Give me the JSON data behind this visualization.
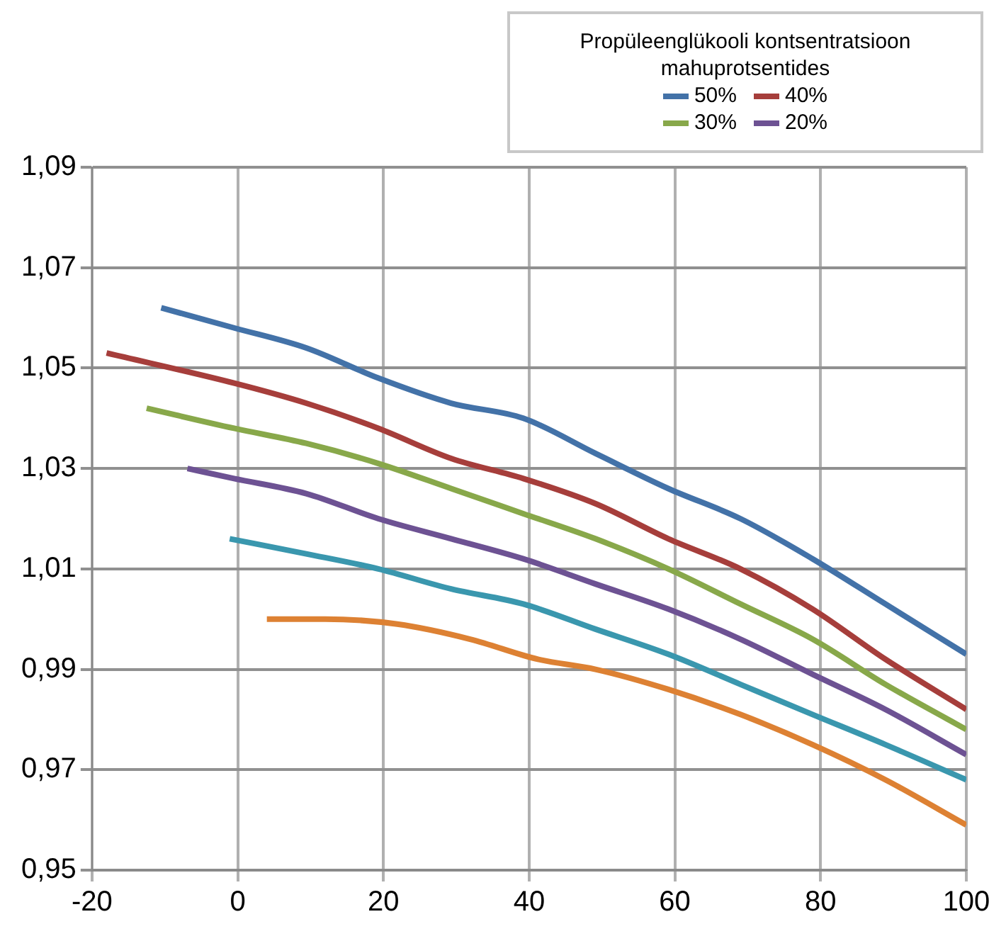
{
  "chart_data": {
    "type": "line",
    "legend_title": "Propüleenglükooli kontsentratsioon mahuprotsentides",
    "xlim": [
      -20,
      100
    ],
    "xticks": [
      -20,
      0,
      20,
      40,
      60,
      80,
      100
    ],
    "ylim": [
      0.95,
      1.09
    ],
    "yticks": [
      {
        "value": 0.95,
        "label": "0,95"
      },
      {
        "value": 0.97,
        "label": "0,97"
      },
      {
        "value": 0.99,
        "label": "0,99"
      },
      {
        "value": 1.01,
        "label": "1,01"
      },
      {
        "value": 1.03,
        "label": "1,03"
      },
      {
        "value": 1.05,
        "label": "1,05"
      },
      {
        "value": 1.07,
        "label": "1,07"
      },
      {
        "value": 1.09,
        "label": "1,09"
      }
    ],
    "grid": true,
    "legend": "top right",
    "marker": "none",
    "line_style": "solid",
    "series": [
      {
        "name": "50%",
        "color": "#4372a8",
        "x": [
          -10.5,
          -0.5,
          9.4,
          19.3,
          29.3,
          39.2,
          49.1,
          59.1,
          69.0,
          78.9,
          88.9,
          100
        ],
        "values": [
          1.062,
          1.058,
          1.054,
          1.048,
          1.043,
          1.04,
          1.033,
          1.026,
          1.02,
          1.012,
          1.003,
          0.993
        ]
      },
      {
        "name": "40%",
        "color": "#a63e3b",
        "x": [
          -18,
          -0.5,
          9.4,
          19.3,
          29.3,
          39.2,
          49.1,
          59.1,
          69.0,
          78.9,
          88.9,
          100
        ],
        "values": [
          1.053,
          1.047,
          1.043,
          1.038,
          1.032,
          1.028,
          1.023,
          1.016,
          1.01,
          1.002,
          0.992,
          0.982
        ]
      },
      {
        "name": "30%",
        "color": "#88a84a",
        "x": [
          -12.5,
          -0.5,
          9.4,
          19.3,
          29.3,
          39.2,
          49.1,
          59.1,
          69.0,
          78.9,
          88.9,
          100
        ],
        "values": [
          1.042,
          1.038,
          1.035,
          1.031,
          1.026,
          1.021,
          1.016,
          1.01,
          1.003,
          0.996,
          0.987,
          0.978
        ]
      },
      {
        "name": "20%",
        "color": "#6d5293",
        "x": [
          -6.9,
          -0.5,
          9.4,
          19.3,
          29.3,
          39.2,
          49.1,
          59.1,
          69.0,
          78.9,
          88.9,
          100
        ],
        "values": [
          1.03,
          1.028,
          1.025,
          1.02,
          1.016,
          1.012,
          1.007,
          1.002,
          0.996,
          0.989,
          0.982,
          0.973
        ]
      },
      {
        "color": "#3a97ae",
        "x": [
          -1.1,
          9.4,
          19.3,
          29.3,
          39.2,
          49.1,
          59.1,
          69.0,
          78.9,
          88.9,
          100
        ],
        "values": [
          1.016,
          1.013,
          1.01,
          1.006,
          1.003,
          0.998,
          0.993,
          0.987,
          0.981,
          0.975,
          0.968
        ]
      },
      {
        "color": "#dd8133",
        "x": [
          4.0,
          12.0,
          21.9,
          31.9,
          41.2,
          49.1,
          59.1,
          69.0,
          78.9,
          88.9,
          100
        ],
        "values": [
          1.0,
          1.0,
          0.999,
          0.996,
          0.992,
          0.99,
          0.986,
          0.981,
          0.975,
          0.968,
          0.959
        ]
      }
    ]
  }
}
